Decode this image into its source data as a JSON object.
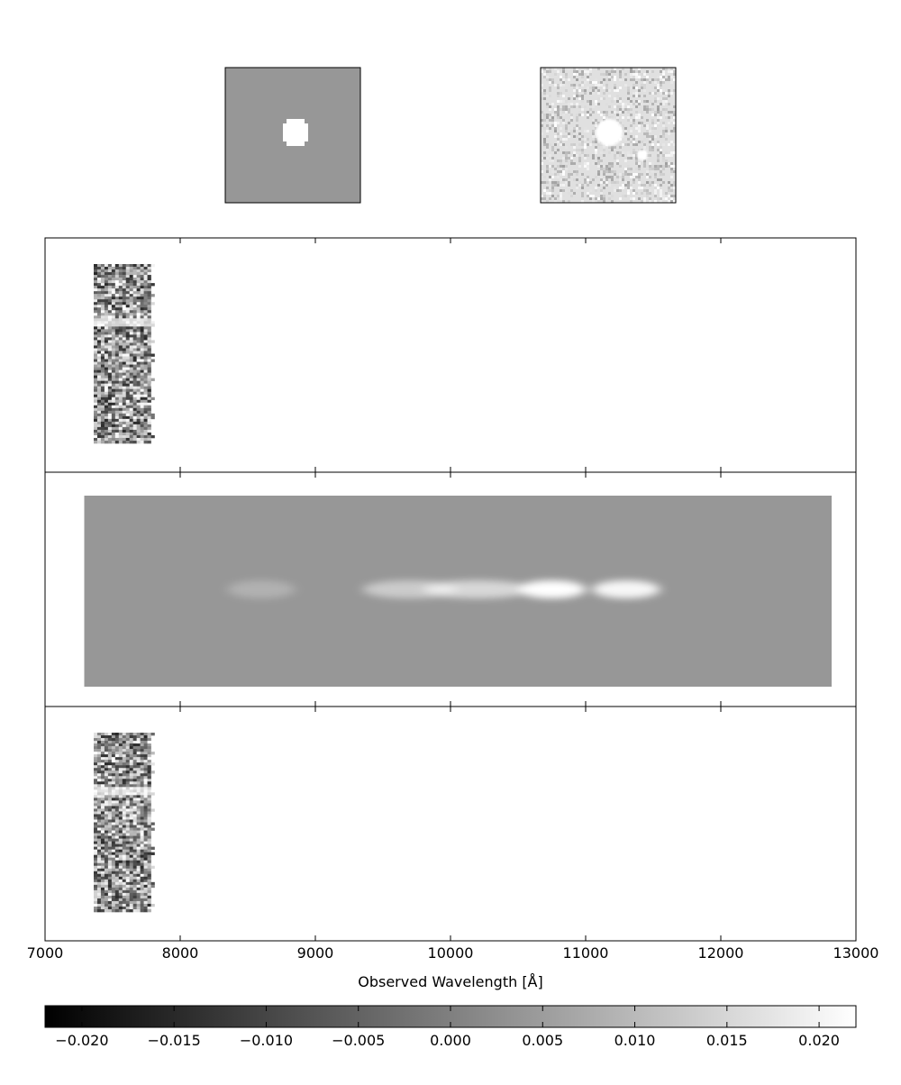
{
  "chart_data": [
    {
      "type": "heatmap",
      "role": "direct image cutouts",
      "panels": [
        "model cutout",
        "data cutout"
      ]
    },
    {
      "type": "heatmap",
      "role": "2D spectra",
      "panels": [
        "data spectrum",
        "model spectrum",
        "residual spectrum"
      ],
      "xlabel": "Observed Wavelength [Å]",
      "xlim": [
        7000,
        13000
      ],
      "xticks": [
        7000,
        8000,
        9000,
        10000,
        11000,
        12000,
        13000
      ],
      "xtick_labels": [
        "7000",
        "8000",
        "9000",
        "10000",
        "11000",
        "12000",
        "13000"
      ],
      "data_range": [
        7360,
        7810
      ],
      "model_range": [
        7290,
        12820
      ],
      "model_emission": [
        {
          "center": 8600,
          "width": 250,
          "strength": 0.25
        },
        {
          "center": 9700,
          "width": 350,
          "strength": 0.5
        },
        {
          "center": 10200,
          "width": 400,
          "strength": 0.62
        },
        {
          "center": 10750,
          "width": 250,
          "strength": 1.0
        },
        {
          "center": 11300,
          "width": 250,
          "strength": 0.92
        }
      ]
    },
    {
      "type": "heatmap",
      "role": "colorbar",
      "colormap": "gray",
      "range": [
        -0.022,
        0.022
      ],
      "ticks": [
        -0.02,
        -0.015,
        -0.01,
        -0.005,
        0.0,
        0.005,
        0.01,
        0.015,
        0.02
      ],
      "tick_labels": [
        "−0.020",
        "−0.015",
        "−0.010",
        "−0.005",
        "0.000",
        "0.005",
        "0.010",
        "0.015",
        "0.020"
      ]
    }
  ]
}
